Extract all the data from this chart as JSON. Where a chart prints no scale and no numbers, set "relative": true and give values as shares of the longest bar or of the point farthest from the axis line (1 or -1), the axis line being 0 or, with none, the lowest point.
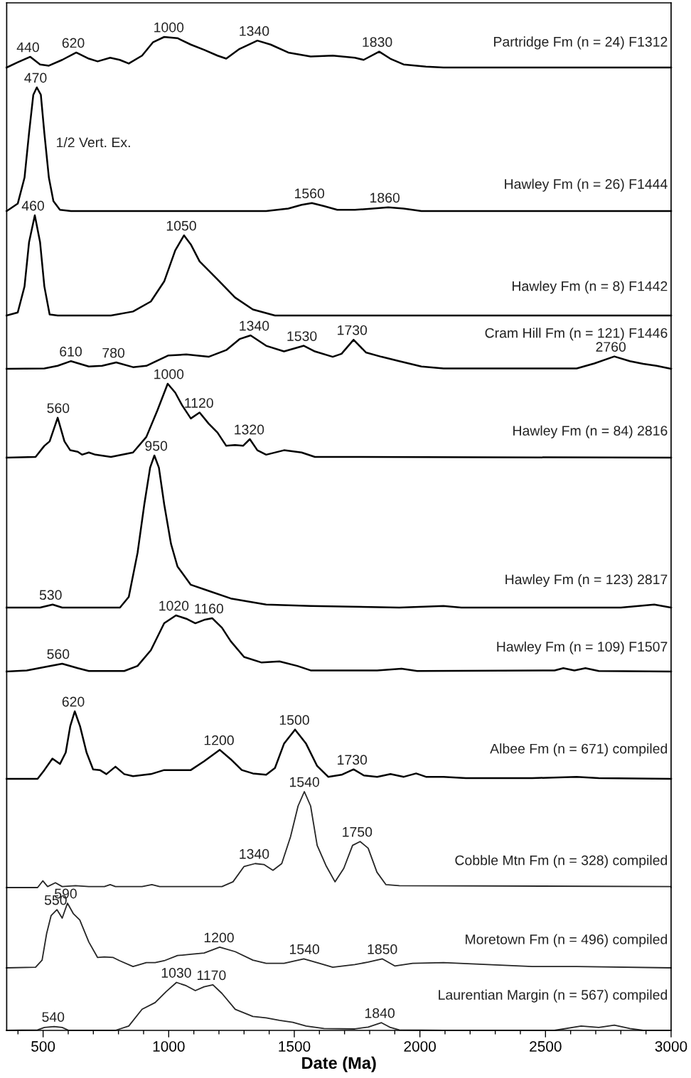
{
  "chart_data": [
    {
      "type": "line",
      "relative": true,
      "title": "Partridge Fm (n = 24) F1312",
      "color": "#000000",
      "xlim": [
        355,
        3000
      ],
      "tick_labels": false,
      "x": [
        355,
        399,
        449,
        488,
        523,
        576,
        632,
        682,
        717,
        767,
        805,
        841,
        894,
        938,
        982,
        1035,
        1088,
        1141,
        1194,
        1229,
        1282,
        1353,
        1406,
        1476,
        1565,
        1653,
        1741,
        1776,
        1838,
        1882,
        1935,
        2024,
        2094,
        3000
      ],
      "values": [
        0,
        0.17,
        0.35,
        0.1,
        0.06,
        0.25,
        0.49,
        0.29,
        0.2,
        0.32,
        0.25,
        0.13,
        0.39,
        0.83,
        1.0,
        0.96,
        0.75,
        0.58,
        0.39,
        0.29,
        0.61,
        0.88,
        0.75,
        0.49,
        0.36,
        0.39,
        0.32,
        0.25,
        0.52,
        0.29,
        0.1,
        0.03,
        0,
        0
      ],
      "annotations": [
        {
          "text": "440",
          "x": 440,
          "y": 0.35
        },
        {
          "text": "620",
          "x": 620,
          "y": 0.49
        },
        {
          "text": "1000",
          "x": 1000,
          "y": 1.0
        },
        {
          "text": "1340",
          "x": 1340,
          "y": 0.88
        },
        {
          "text": "1830",
          "x": 1830,
          "y": 0.52
        }
      ]
    },
    {
      "type": "line",
      "relative": true,
      "title": "Hawley Fm (n = 26) F1444",
      "color": "#000000",
      "xlim": [
        355,
        3000
      ],
      "tick_labels": false,
      "x": [
        355,
        399,
        426,
        444,
        461,
        475,
        491,
        505,
        523,
        541,
        567,
        611,
        1388,
        1476,
        1529,
        1570,
        1618,
        1671,
        1741,
        1812,
        1874,
        1935,
        2006,
        3000
      ],
      "values": [
        0,
        0.06,
        0.27,
        0.63,
        0.94,
        1.0,
        0.94,
        0.63,
        0.27,
        0.08,
        0.01,
        0,
        0,
        0.02,
        0.05,
        0.065,
        0.04,
        0.01,
        0.01,
        0.02,
        0.03,
        0.02,
        0,
        0
      ],
      "annotations": [
        {
          "text": "470",
          "x": 470,
          "y": 1.0
        },
        "1/2 Vert. Ex.",
        {
          "text": "1560",
          "x": 1560,
          "y": 0.065
        },
        {
          "text": "1860",
          "x": 1860,
          "y": 0.03
        }
      ]
    },
    {
      "type": "line",
      "relative": true,
      "title": "Hawley Fm (n = 8) F1442",
      "color": "#000000",
      "xlim": [
        355,
        3000
      ],
      "tick_labels": false,
      "x": [
        355,
        399,
        426,
        444,
        467,
        488,
        505,
        526,
        558,
        770,
        858,
        929,
        982,
        1026,
        1061,
        1088,
        1123,
        1194,
        1264,
        1335,
        1423,
        1565,
        3000
      ],
      "values": [
        0,
        0.03,
        0.29,
        0.73,
        1.0,
        0.73,
        0.29,
        0.01,
        0,
        0,
        0.04,
        0.14,
        0.34,
        0.65,
        0.8,
        0.71,
        0.54,
        0.36,
        0.18,
        0.06,
        0,
        0,
        0
      ],
      "annotations": [
        {
          "text": "460",
          "x": 460,
          "y": 1.0
        },
        {
          "text": "1050",
          "x": 1050,
          "y": 0.8
        }
      ]
    },
    {
      "type": "line",
      "relative": true,
      "title": "Cram Hill Fm (n = 121) F1446",
      "color": "#000000",
      "xlim": [
        355,
        3000
      ],
      "tick_labels": false,
      "x": [
        355,
        505,
        558,
        611,
        682,
        735,
        791,
        858,
        911,
        999,
        1070,
        1159,
        1229,
        1282,
        1326,
        1388,
        1459,
        1538,
        1582,
        1653,
        1688,
        1736,
        1785,
        1847,
        1918,
        2006,
        2094,
        2624,
        2694,
        2774,
        2836,
        2889,
        2942,
        3000
      ],
      "values": [
        0,
        0.01,
        0.09,
        0.23,
        0.07,
        0.09,
        0.19,
        0.05,
        0.09,
        0.4,
        0.43,
        0.36,
        0.56,
        0.89,
        1.0,
        0.69,
        0.52,
        0.69,
        0.52,
        0.36,
        0.45,
        0.87,
        0.49,
        0.36,
        0.23,
        0.07,
        0.01,
        0.01,
        0.16,
        0.37,
        0.23,
        0.15,
        0.09,
        0
      ],
      "annotations": [
        {
          "text": "610",
          "x": 610,
          "y": 0.23
        },
        {
          "text": "780",
          "x": 780,
          "y": 0.19
        },
        {
          "text": "1340",
          "x": 1340,
          "y": 1.0
        },
        {
          "text": "1530",
          "x": 1530,
          "y": 0.69
        },
        {
          "text": "1730",
          "x": 1730,
          "y": 0.87
        },
        {
          "text": "2760",
          "x": 2760,
          "y": 0.37
        }
      ]
    },
    {
      "type": "line",
      "relative": true,
      "title": "Hawley Fm (n = 84) 2816",
      "color": "#000000",
      "xlim": [
        355,
        3000
      ],
      "tick_labels": false,
      "x": [
        355,
        470,
        505,
        526,
        558,
        585,
        608,
        638,
        655,
        682,
        708,
        770,
        858,
        911,
        955,
        996,
        1026,
        1053,
        1088,
        1123,
        1159,
        1194,
        1229,
        1264,
        1296,
        1323,
        1353,
        1388,
        1459,
        1529,
        1582,
        3000
      ],
      "values": [
        0,
        0.01,
        0.16,
        0.22,
        0.54,
        0.22,
        0.1,
        0.08,
        0.04,
        0.07,
        0.04,
        0.01,
        0.07,
        0.28,
        0.64,
        1.0,
        0.88,
        0.71,
        0.53,
        0.61,
        0.46,
        0.34,
        0.16,
        0.17,
        0.16,
        0.25,
        0.1,
        0.04,
        0.1,
        0.07,
        0.01,
        0
      ],
      "annotations": [
        {
          "text": "560",
          "x": 560,
          "y": 0.54
        },
        {
          "text": "1000",
          "x": 1000,
          "y": 1.0
        },
        {
          "text": "1120",
          "x": 1120,
          "y": 0.61
        },
        {
          "text": "1320",
          "x": 1320,
          "y": 0.25
        }
      ]
    },
    {
      "type": "line",
      "relative": true,
      "title": "Hawley Fm (n = 123) 2817",
      "color": "#000000",
      "xlim": [
        355,
        3000
      ],
      "tick_labels": false,
      "x": [
        355,
        488,
        538,
        576,
        806,
        841,
        876,
        903,
        926,
        943,
        961,
        982,
        1009,
        1035,
        1088,
        1159,
        1247,
        1317,
        1388,
        1565,
        1918,
        2094,
        2165,
        2800,
        2933,
        3000
      ],
      "values": [
        0,
        0,
        0.02,
        0,
        0,
        0.07,
        0.36,
        0.68,
        0.92,
        1.0,
        0.92,
        0.68,
        0.42,
        0.27,
        0.15,
        0.11,
        0.06,
        0.04,
        0.02,
        0.01,
        0,
        0.01,
        0,
        0,
        0.02,
        0
      ],
      "annotations": [
        {
          "text": "530",
          "x": 530,
          "y": 0.02
        },
        {
          "text": "950",
          "x": 950,
          "y": 1.0
        }
      ]
    },
    {
      "type": "line",
      "relative": true,
      "title": "Hawley Fm (n = 109) F1507",
      "color": "#000000",
      "xlim": [
        355,
        3000
      ],
      "tick_labels": false,
      "x": [
        355,
        435,
        505,
        576,
        638,
        682,
        823,
        876,
        929,
        982,
        1029,
        1070,
        1106,
        1141,
        1173,
        1212,
        1247,
        1300,
        1370,
        1441,
        1512,
        1565,
        1830,
        1927,
        1989,
        2536,
        2571,
        2615,
        2659,
        2712,
        3000
      ],
      "values": [
        0,
        0.02,
        0.08,
        0.14,
        0.06,
        0.01,
        0.01,
        0.1,
        0.38,
        0.86,
        1.0,
        0.94,
        0.86,
        0.92,
        0.95,
        0.78,
        0.54,
        0.26,
        0.16,
        0.18,
        0.1,
        0.02,
        0.02,
        0.05,
        0.01,
        0.02,
        0.06,
        0.02,
        0.06,
        0.01,
        0
      ],
      "annotations": [
        {
          "text": "560",
          "x": 560,
          "y": 0.14
        },
        {
          "text": "1020",
          "x": 1020,
          "y": 1.0
        },
        {
          "text": "1160",
          "x": 1160,
          "y": 0.95
        }
      ]
    },
    {
      "type": "line",
      "relative": true,
      "title": "Albee Fm (n = 671) compiled",
      "color": "#000000",
      "xlim": [
        355,
        3000
      ],
      "tick_labels": false,
      "x": [
        355,
        478,
        505,
        537,
        567,
        590,
        608,
        626,
        647,
        673,
        699,
        726,
        752,
        788,
        823,
        858,
        929,
        982,
        1088,
        1141,
        1203,
        1247,
        1291,
        1335,
        1388,
        1423,
        1459,
        1503,
        1547,
        1591,
        1635,
        1688,
        1736,
        1777,
        1830,
        1883,
        1936,
        1985,
        2024,
        2094,
        2183,
        2447,
        2624,
        2712,
        3000
      ],
      "values": [
        0,
        0,
        0.13,
        0.3,
        0.22,
        0.39,
        0.78,
        1.0,
        0.78,
        0.39,
        0.14,
        0.13,
        0.07,
        0.18,
        0.07,
        0.04,
        0.07,
        0.13,
        0.13,
        0.26,
        0.43,
        0.29,
        0.13,
        0.08,
        0.06,
        0.16,
        0.52,
        0.73,
        0.52,
        0.19,
        0.03,
        0.06,
        0.14,
        0.05,
        0.03,
        0.07,
        0.03,
        0.08,
        0.03,
        0.03,
        0.01,
        0.01,
        0.03,
        0.01,
        0
      ],
      "annotations": [
        {
          "text": "620",
          "x": 620,
          "y": 1.0
        },
        {
          "text": "1200",
          "x": 1200,
          "y": 0.43
        },
        {
          "text": "1500",
          "x": 1500,
          "y": 0.73
        },
        {
          "text": "1730",
          "x": 1730,
          "y": 0.14
        }
      ]
    },
    {
      "type": "line",
      "relative": true,
      "title": "Cobble Mtn Fm (n = 328) compiled",
      "color": "#262626",
      "xlim": [
        355,
        3000
      ],
      "tick_labels": false,
      "x": [
        355,
        478,
        499,
        518,
        549,
        576,
        629,
        682,
        744,
        767,
        788,
        894,
        933,
        964,
        1212,
        1256,
        1300,
        1344,
        1379,
        1415,
        1450,
        1485,
        1515,
        1540,
        1565,
        1591,
        1626,
        1662,
        1697,
        1732,
        1762,
        1794,
        1829,
        1865,
        1918,
        3000
      ],
      "values": [
        0,
        0,
        0.07,
        0.01,
        0.05,
        0.01,
        0.02,
        0.01,
        0.01,
        0.03,
        0.01,
        0.01,
        0.03,
        0.01,
        0.01,
        0.06,
        0.22,
        0.25,
        0.24,
        0.18,
        0.25,
        0.53,
        0.85,
        1.0,
        0.85,
        0.44,
        0.23,
        0.06,
        0.2,
        0.44,
        0.48,
        0.41,
        0.16,
        0.03,
        0.02,
        0.01
      ],
      "annotations": [
        {
          "text": "1340",
          "x": 1340,
          "y": 0.25
        },
        {
          "text": "1540",
          "x": 1540,
          "y": 1.0
        },
        {
          "text": "1750",
          "x": 1750,
          "y": 0.48
        }
      ]
    },
    {
      "type": "line",
      "relative": true,
      "title": "Moretown Fm (n = 496) compiled",
      "color": "#262626",
      "xlim": [
        355,
        3000
      ],
      "tick_labels": false,
      "x": [
        355,
        470,
        496,
        514,
        532,
        555,
        576,
        597,
        620,
        646,
        682,
        717,
        744,
        779,
        805,
        858,
        911,
        946,
        982,
        1035,
        1088,
        1141,
        1203,
        1265,
        1335,
        1388,
        1459,
        1538,
        1600,
        1653,
        1741,
        1794,
        1850,
        1900,
        1971,
        2094,
        2447,
        2624,
        3000
      ],
      "values": [
        0,
        0.01,
        0.12,
        0.53,
        0.81,
        0.9,
        0.77,
        1.0,
        0.84,
        0.74,
        0.4,
        0.16,
        0.17,
        0.16,
        0.11,
        0.02,
        0.08,
        0.08,
        0.11,
        0.19,
        0.21,
        0.23,
        0.32,
        0.25,
        0.12,
        0.07,
        0.07,
        0.14,
        0.07,
        0.01,
        0.05,
        0.09,
        0.14,
        0.03,
        0.07,
        0.08,
        0.02,
        0.02,
        0
      ],
      "annotations": [
        {
          "text": "550",
          "x": 550,
          "y": 0.9
        },
        {
          "text": "590",
          "x": 590,
          "y": 1.0
        },
        {
          "text": "1200",
          "x": 1200,
          "y": 0.32
        },
        {
          "text": "1540",
          "x": 1540,
          "y": 0.14
        },
        {
          "text": "1850",
          "x": 1850,
          "y": 0.14
        }
      ]
    },
    {
      "type": "line",
      "relative": true,
      "title": "Laurentian Margin (n = 567) compiled",
      "color": "#262626",
      "xlim": [
        355,
        3000
      ],
      "xlabel": "Date (Ma)",
      "tick_labels": "x",
      "xticks": [
        {
          "value": 400,
          "label": null
        },
        500,
        {
          "value": 600,
          "label": null
        },
        {
          "value": 700,
          "label": null
        },
        {
          "value": 800,
          "label": null
        },
        {
          "value": 900,
          "label": null
        },
        1000,
        {
          "value": 1100,
          "label": null
        },
        {
          "value": 1200,
          "label": null
        },
        {
          "value": 1300,
          "label": null
        },
        {
          "value": 1400,
          "label": null
        },
        1500,
        {
          "value": 1600,
          "label": null
        },
        {
          "value": 1700,
          "label": null
        },
        {
          "value": 1800,
          "label": null
        },
        {
          "value": 1900,
          "label": null
        },
        2000,
        {
          "value": 2100,
          "label": null
        },
        {
          "value": 2200,
          "label": null
        },
        {
          "value": 2300,
          "label": null
        },
        {
          "value": 2400,
          "label": null
        },
        2500,
        {
          "value": 2600,
          "label": null
        },
        {
          "value": 2700,
          "label": null
        },
        {
          "value": 2800,
          "label": null
        },
        {
          "value": 2900,
          "label": null
        },
        3000
      ],
      "x": [
        355,
        478,
        505,
        544,
        576,
        602,
        788,
        841,
        894,
        946,
        990,
        1031,
        1070,
        1106,
        1141,
        1176,
        1212,
        1265,
        1335,
        1388,
        1441,
        1494,
        1547,
        1618,
        1741,
        1794,
        1847,
        1883,
        1918,
        2094,
        2536,
        2642,
        2712,
        2774,
        2836,
        2889,
        3000
      ],
      "values": [
        0,
        0.01,
        0.06,
        0.08,
        0.06,
        0,
        0,
        0.09,
        0.44,
        0.58,
        0.81,
        1.0,
        0.93,
        0.83,
        0.91,
        0.95,
        0.77,
        0.44,
        0.29,
        0.26,
        0.21,
        0.17,
        0.09,
        0.04,
        0.03,
        0.07,
        0.16,
        0.06,
        0.01,
        0,
        0,
        0.09,
        0.06,
        0.11,
        0.04,
        0,
        0
      ],
      "annotations": [
        {
          "text": "540",
          "x": 540,
          "y": 0.08
        },
        {
          "text": "1030",
          "x": 1030,
          "y": 1.0
        },
        {
          "text": "1170",
          "x": 1170,
          "y": 0.95
        },
        {
          "text": "1840",
          "x": 1840,
          "y": 0.16
        }
      ]
    }
  ]
}
